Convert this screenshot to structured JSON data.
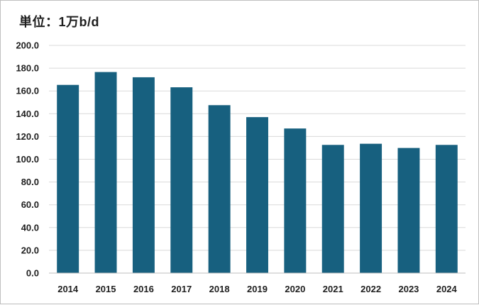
{
  "chart_data": {
    "type": "bar",
    "unit_label": "単位：1万b/d",
    "categories": [
      "2014",
      "2015",
      "2016",
      "2017",
      "2018",
      "2019",
      "2020",
      "2021",
      "2022",
      "2023",
      "2024"
    ],
    "values": [
      165.3,
      176.6,
      172.0,
      163.2,
      147.5,
      137.0,
      127.0,
      112.6,
      113.6,
      109.9,
      112.6
    ],
    "ylim": [
      0,
      200
    ],
    "yticks": [
      "0.0",
      "20.0",
      "40.0",
      "60.0",
      "80.0",
      "100.0",
      "120.0",
      "140.0",
      "160.0",
      "180.0",
      "200.0"
    ],
    "bar_color": "#17607f",
    "grid_color": "#d9d9d9",
    "grid": true,
    "legend": "none"
  }
}
